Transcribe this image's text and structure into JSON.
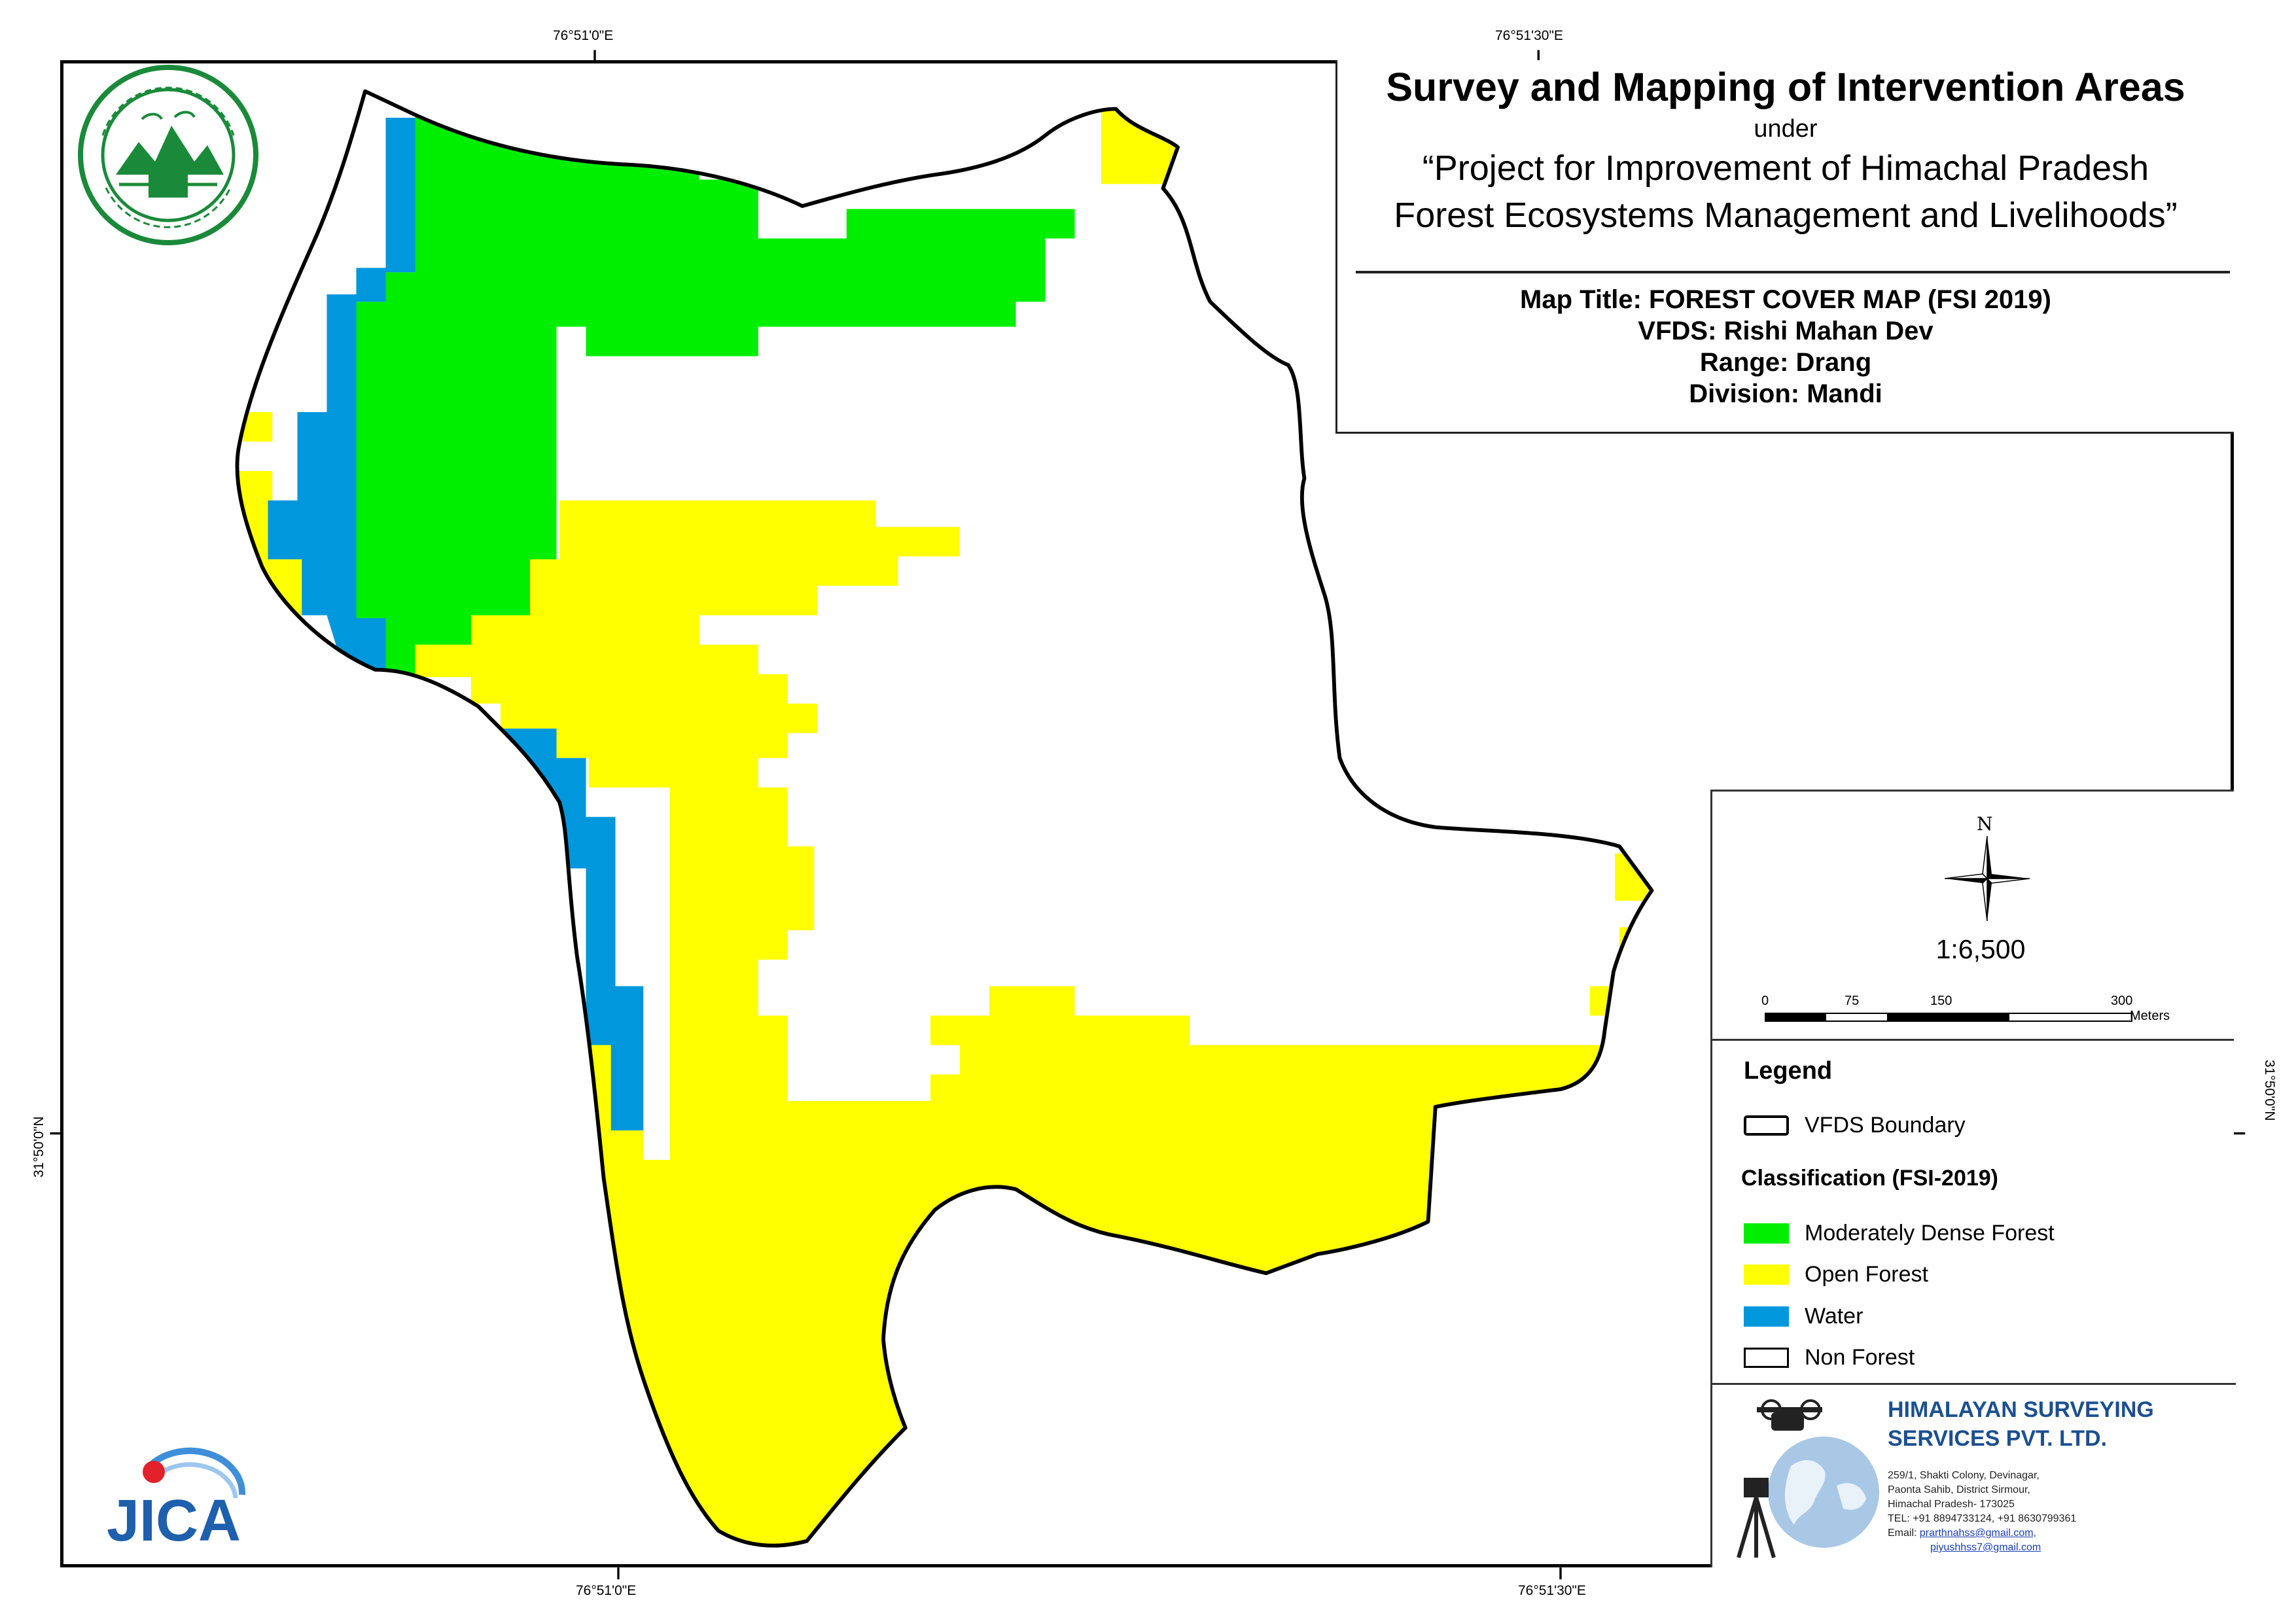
{
  "title_block": {
    "main_title": "Survey and Mapping of Intervention Areas",
    "under": "under",
    "project_line1": "“Project for Improvement of Himachal Pradesh",
    "project_line2": "Forest Ecosystems Management and Livelihoods”",
    "map_title": "Map Title: FOREST COVER MAP (FSI 2019)",
    "vfds": "VFDS: Rishi Mahan Dev",
    "range": "Range: Drang",
    "division": "Division: Mandi"
  },
  "coordinates": {
    "top_left": "76°51'0\"E",
    "top_right": "76°51'30\"E",
    "bottom_left": "76°51'0\"E",
    "bottom_right": "76°51'30\"E",
    "left_lat": "31°50'0\"N",
    "right_lat": "31°50'0\"N"
  },
  "map_furniture": {
    "north_label": "N",
    "scale": "1:6,500",
    "scalebar_ticks": [
      "0",
      "75",
      "150",
      "300"
    ],
    "scalebar_unit": "Meters"
  },
  "legend": {
    "title": "Legend",
    "boundary_label": "VFDS Boundary",
    "classification_title": "Classification (FSI-2019)",
    "classes": [
      {
        "label": "Moderately Dense Forest",
        "color": "#00ee00"
      },
      {
        "label": "Open Forest",
        "color": "#ffff00"
      },
      {
        "label": "Water",
        "color": "#0097dd"
      },
      {
        "label": "Non Forest",
        "color": "#ffffff"
      }
    ]
  },
  "company": {
    "name_line1": "HIMALAYAN SURVEYING",
    "name_line2": "SERVICES PVT. LTD.",
    "address_line1": "259/1, Shakti Colony, Devinagar,",
    "address_line2": "Paonta Sahib, District Sirmour,",
    "address_line3": "Himachal Pradesh- 173025",
    "tel": "TEL: +91 8894733124, +91 8630799361",
    "email_label": "Email:",
    "email1": "prarthnahss@gmail.com,",
    "email2": "piyushhss7@gmail.com"
  },
  "logos": {
    "forest_dept": "himachal-forest-department-logo",
    "jica": "jica-logo",
    "jica_text": "JICA"
  },
  "colors": {
    "dense_forest": "#00ee00",
    "open_forest": "#ffff00",
    "water": "#0097dd",
    "non_forest": "#ffffff",
    "boundary": "#000000",
    "company_blue": "#1b4f91"
  }
}
